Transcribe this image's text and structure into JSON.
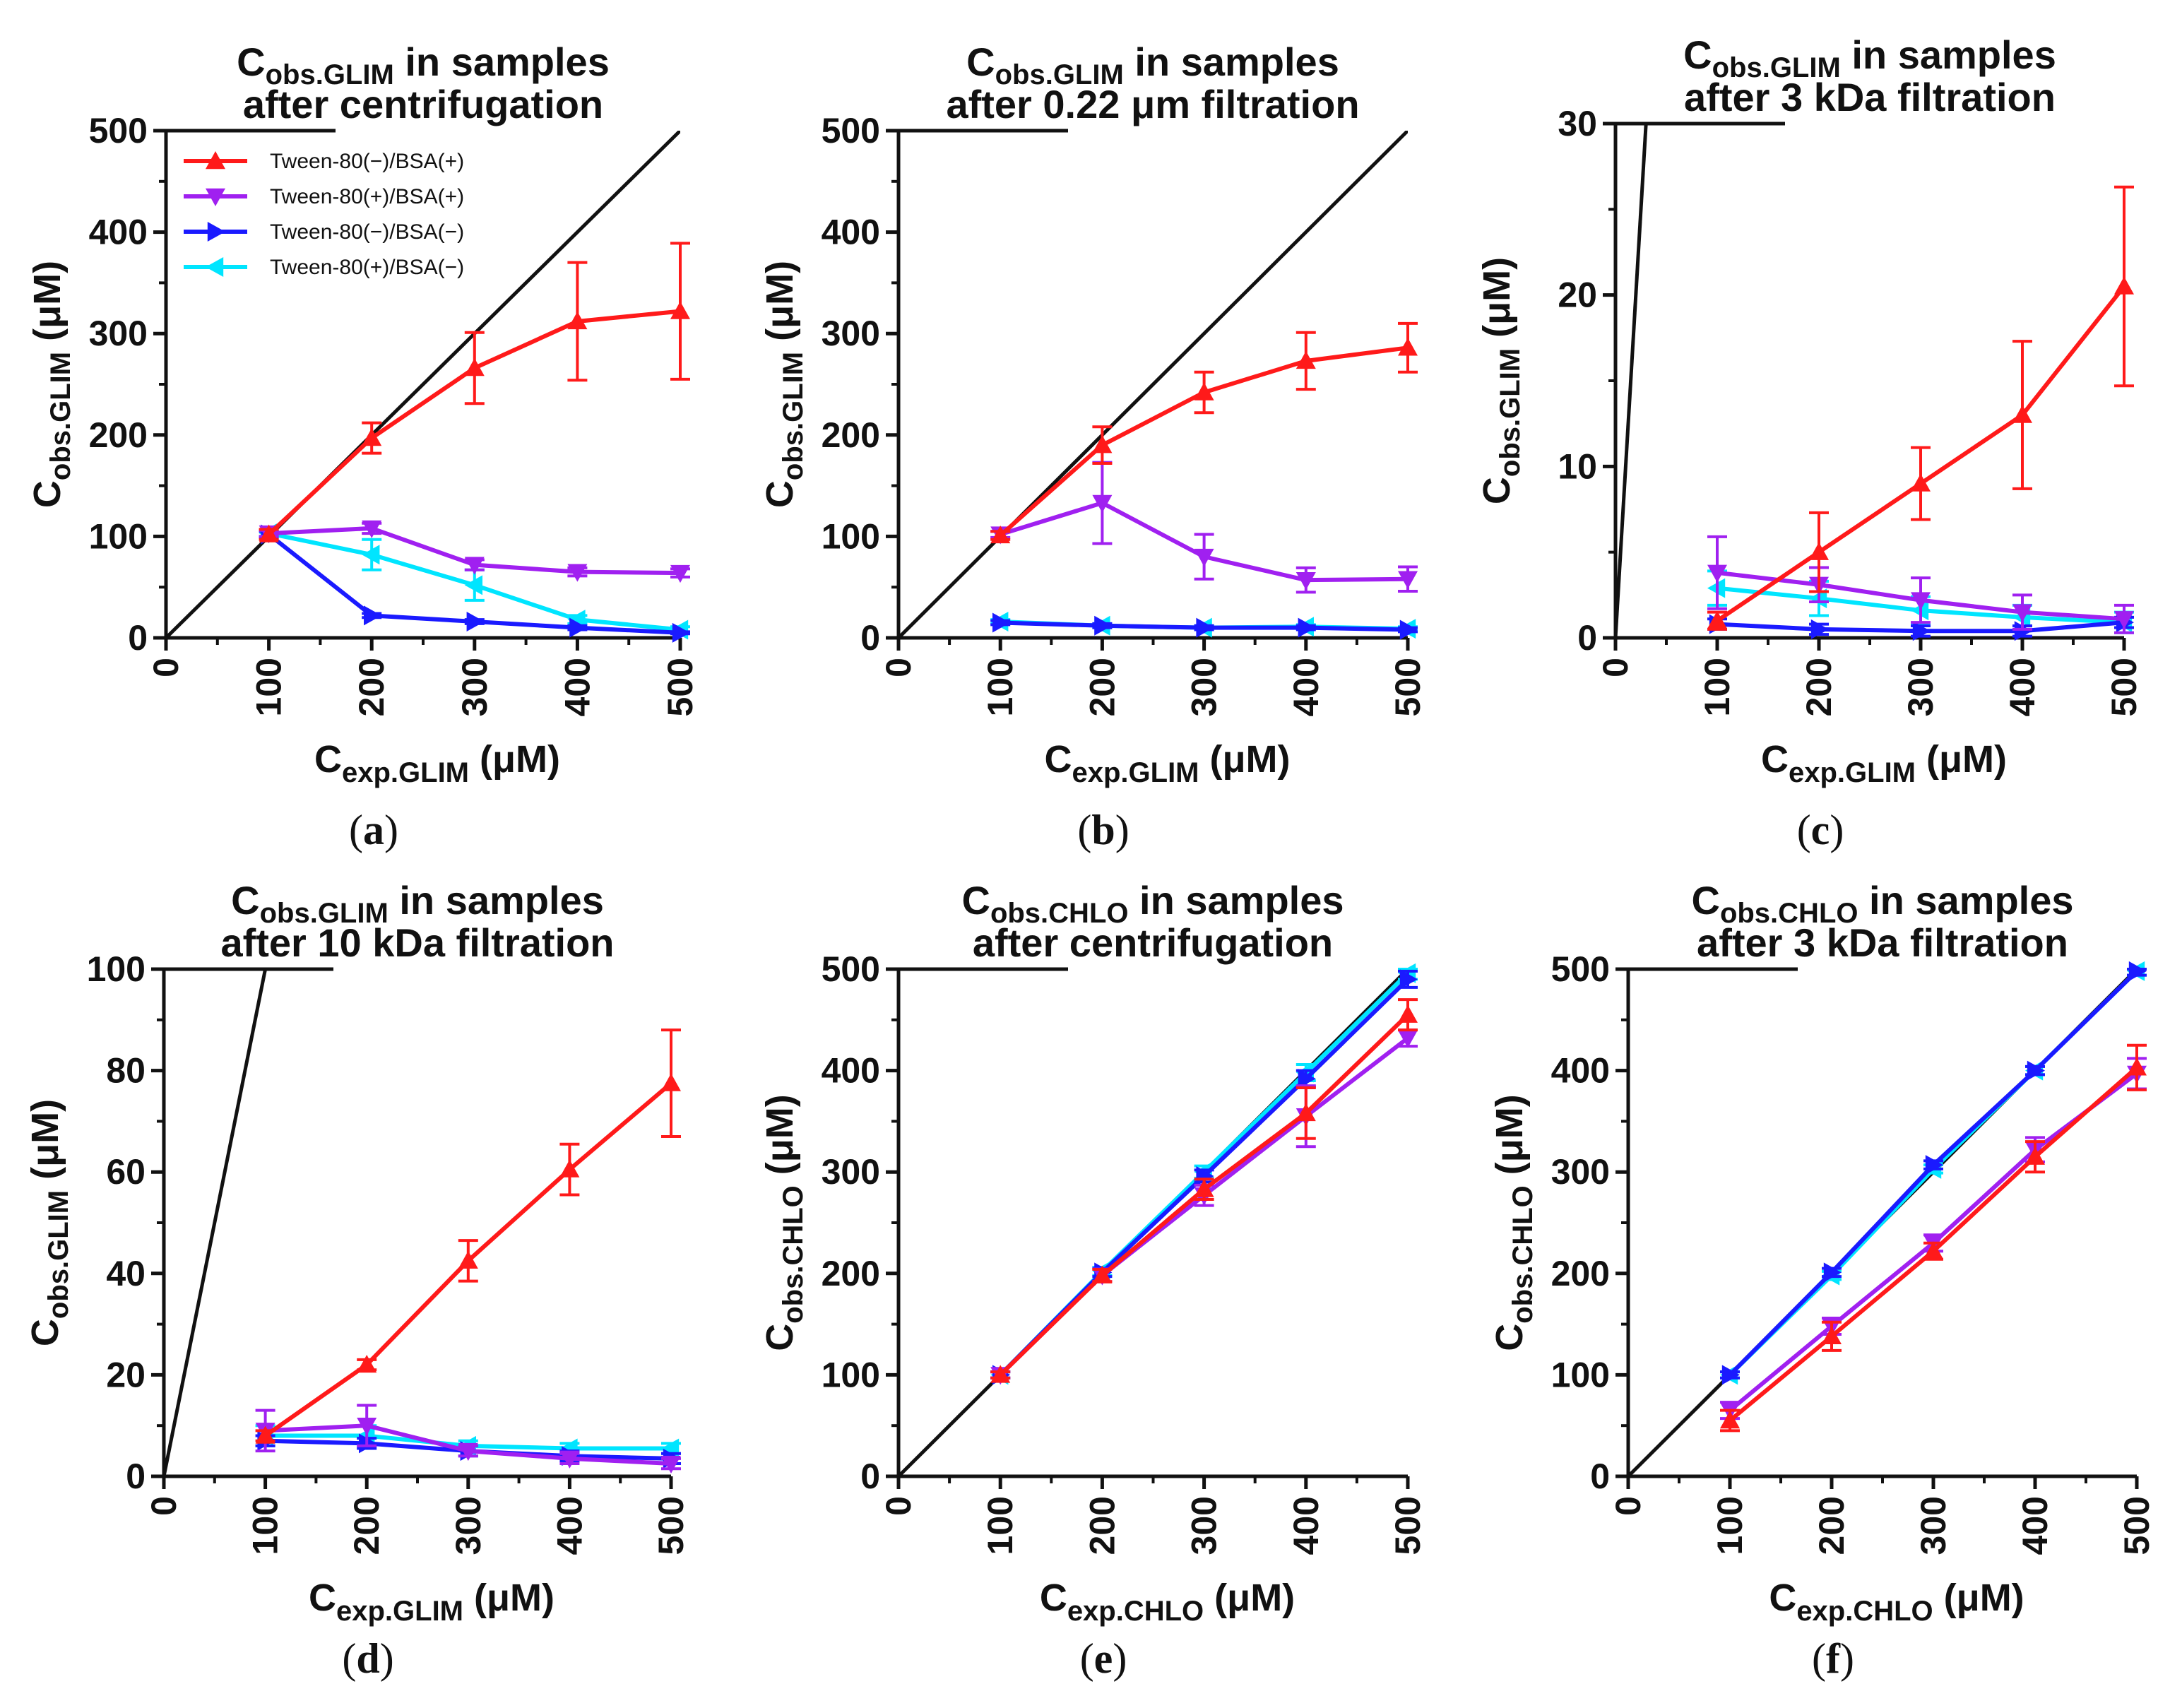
{
  "colors": {
    "t80neg_bsapos": "#ff1a1a",
    "t80pos_bsapos": "#a020f0",
    "t80neg_bsaneg": "#1a1aff",
    "t80pos_bsaneg": "#00e5ff",
    "identity": "#111111"
  },
  "legend": [
    {
      "key": "t80neg_bsapos",
      "label": "Tween-80(−)/BSA(+)",
      "marker": "up"
    },
    {
      "key": "t80pos_bsapos",
      "label": "Tween-80(+)/BSA(+)",
      "marker": "down"
    },
    {
      "key": "t80neg_bsaneg",
      "label": "Tween-80(−)/BSA(−)",
      "marker": "right"
    },
    {
      "key": "t80pos_bsaneg",
      "label": "Tween-80(+)/BSA(−)",
      "marker": "left"
    }
  ],
  "chart_data": [
    {
      "panel": "a",
      "type": "line",
      "panel_label": "(a)",
      "title_sym": "C",
      "title_sub": "obs.GLIM",
      "title_rest": " in samples",
      "title_line2": "after centrifugation",
      "xlabel_sym": "C",
      "xlabel_sub": "exp.GLIM",
      "xlabel_rest": " (μM)",
      "ylabel_sym": "C",
      "ylabel_sub": "obs.GLIM",
      "ylabel_rest": " (μM)",
      "xlim": [
        0,
        500
      ],
      "ylim": [
        0,
        500
      ],
      "xticks": [
        0,
        100,
        200,
        300,
        400,
        500
      ],
      "yticks": [
        0,
        100,
        200,
        300,
        400,
        500
      ],
      "show_legend": true,
      "x": [
        100,
        200,
        300,
        400,
        500
      ],
      "series": [
        {
          "key": "t80neg_bsapos",
          "values": [
            102,
            197,
            266,
            312,
            322
          ],
          "errors": [
            5,
            15,
            35,
            58,
            67
          ]
        },
        {
          "key": "t80pos_bsapos",
          "values": [
            103,
            108,
            72,
            65,
            64
          ],
          "errors": [
            3,
            5,
            5,
            4,
            4
          ]
        },
        {
          "key": "t80neg_bsaneg",
          "values": [
            102,
            22,
            16,
            10,
            5
          ],
          "errors": [
            3,
            2,
            2,
            2,
            1
          ]
        },
        {
          "key": "t80pos_bsaneg",
          "values": [
            103,
            82,
            52,
            18,
            8
          ],
          "errors": [
            3,
            15,
            15,
            4,
            3
          ]
        }
      ]
    },
    {
      "panel": "b",
      "type": "line",
      "panel_label": "(b)",
      "title_sym": "C",
      "title_sub": "obs.GLIM",
      "title_rest": " in samples",
      "title_line2": "after 0.22 μm filtration",
      "xlabel_sym": "C",
      "xlabel_sub": "exp.GLIM",
      "xlabel_rest": " (μM)",
      "ylabel_sym": "C",
      "ylabel_sub": "obs.GLIM",
      "ylabel_rest": " (μM)",
      "xlim": [
        0,
        500
      ],
      "ylim": [
        0,
        500
      ],
      "xticks": [
        0,
        100,
        200,
        300,
        400,
        500
      ],
      "yticks": [
        0,
        100,
        200,
        300,
        400,
        500
      ],
      "show_legend": false,
      "x": [
        100,
        200,
        300,
        400,
        500
      ],
      "series": [
        {
          "key": "t80neg_bsapos",
          "values": [
            101,
            190,
            242,
            273,
            286
          ],
          "errors": [
            4,
            18,
            20,
            28,
            24
          ]
        },
        {
          "key": "t80pos_bsapos",
          "values": [
            102,
            133,
            80,
            57,
            58
          ],
          "errors": [
            3,
            40,
            22,
            12,
            12
          ]
        },
        {
          "key": "t80neg_bsaneg",
          "values": [
            15,
            12,
            10,
            10,
            8
          ],
          "errors": [
            2,
            2,
            2,
            2,
            2
          ]
        },
        {
          "key": "t80pos_bsaneg",
          "values": [
            16,
            12,
            10,
            11,
            9
          ],
          "errors": [
            2,
            2,
            2,
            2,
            2
          ]
        }
      ]
    },
    {
      "panel": "c",
      "type": "line",
      "panel_label": "(c)",
      "title_sym": "C",
      "title_sub": "obs.GLIM",
      "title_rest": " in samples",
      "title_line2": "after 3 kDa filtration",
      "xlabel_sym": "C",
      "xlabel_sub": "exp.GLIM",
      "xlabel_rest": " (μM)",
      "ylabel_sym": "C",
      "ylabel_sub": "obs.GLIM",
      "ylabel_rest": " (μM)",
      "xlim": [
        0,
        500
      ],
      "ylim": [
        0,
        30
      ],
      "xticks": [
        0,
        100,
        200,
        300,
        400,
        500
      ],
      "yticks": [
        0,
        10,
        20,
        30
      ],
      "show_legend": false,
      "x": [
        100,
        200,
        300,
        400,
        500
      ],
      "series": [
        {
          "key": "t80neg_bsapos",
          "values": [
            1,
            5,
            9,
            13,
            20.5
          ],
          "errors": [
            0.5,
            2.3,
            2.1,
            4.3,
            5.8
          ]
        },
        {
          "key": "t80pos_bsapos",
          "values": [
            3.8,
            3.1,
            2.2,
            1.5,
            1.1
          ],
          "errors": [
            2.1,
            1.0,
            1.3,
            1.0,
            0.8
          ]
        },
        {
          "key": "t80neg_bsaneg",
          "values": [
            0.8,
            0.5,
            0.4,
            0.4,
            0.9
          ],
          "errors": [
            0.3,
            0.3,
            0.3,
            0.3,
            0.3
          ]
        },
        {
          "key": "t80pos_bsaneg",
          "values": [
            2.9,
            2.3,
            1.6,
            1.2,
            0.9
          ],
          "errors": [
            1.0,
            1.0,
            0.8,
            0.7,
            0.6
          ]
        }
      ]
    },
    {
      "panel": "d",
      "type": "line",
      "panel_label": "(d)",
      "title_sym": "C",
      "title_sub": "obs.GLIM",
      "title_rest": " in samples",
      "title_line2": "after 10 kDa filtration",
      "xlabel_sym": "C",
      "xlabel_sub": "exp.GLIM",
      "xlabel_rest": " (μM)",
      "ylabel_sym": "C",
      "ylabel_sub": "obs.GLIM",
      "ylabel_rest": " (μM)",
      "xlim": [
        0,
        500
      ],
      "ylim": [
        0,
        100
      ],
      "xticks": [
        0,
        100,
        200,
        300,
        400,
        500
      ],
      "yticks": [
        0,
        20,
        40,
        60,
        80,
        100
      ],
      "show_legend": false,
      "x": [
        100,
        200,
        300,
        400,
        500
      ],
      "series": [
        {
          "key": "t80neg_bsapos",
          "values": [
            8,
            22,
            42.5,
            60.5,
            77.5
          ],
          "errors": [
            1,
            1,
            4,
            5,
            10.5
          ]
        },
        {
          "key": "t80pos_bsapos",
          "values": [
            9,
            10,
            5,
            3.5,
            2.5
          ],
          "errors": [
            4,
            4,
            1,
            1,
            1
          ]
        },
        {
          "key": "t80neg_bsaneg",
          "values": [
            7,
            6.5,
            5,
            4,
            3.5
          ],
          "errors": [
            1,
            1,
            1,
            1,
            1
          ]
        },
        {
          "key": "t80pos_bsaneg",
          "values": [
            8,
            8,
            6,
            5.5,
            5.5
          ],
          "errors": [
            2,
            2,
            1,
            1,
            1
          ]
        }
      ]
    },
    {
      "panel": "e",
      "type": "line",
      "panel_label": "(e)",
      "title_sym": "C",
      "title_sub": "obs.CHLO",
      "title_rest": " in samples",
      "title_line2": "after centrifugation",
      "xlabel_sym": "C",
      "xlabel_sub": "exp.CHLO",
      "xlabel_rest": " (μM)",
      "ylabel_sym": "C",
      "ylabel_sub": "obs.CHLO",
      "ylabel_rest": " (μM)",
      "xlim": [
        0,
        500
      ],
      "ylim": [
        0,
        500
      ],
      "xticks": [
        0,
        100,
        200,
        300,
        400,
        500
      ],
      "yticks": [
        0,
        100,
        200,
        300,
        400,
        500
      ],
      "show_legend": false,
      "x": [
        100,
        200,
        300,
        400,
        500
      ],
      "series": [
        {
          "key": "t80neg_bsapos",
          "values": [
            100,
            198,
            283,
            358,
            455
          ],
          "errors": [
            3,
            6,
            10,
            25,
            15
          ]
        },
        {
          "key": "t80pos_bsapos",
          "values": [
            100,
            198,
            277,
            355,
            432
          ],
          "errors": [
            3,
            6,
            10,
            30,
            8
          ]
        },
        {
          "key": "t80neg_bsaneg",
          "values": [
            100,
            201,
            296,
            392,
            490
          ],
          "errors": [
            3,
            4,
            6,
            8,
            8
          ]
        },
        {
          "key": "t80pos_bsaneg",
          "values": [
            100,
            202,
            300,
            398,
            496
          ],
          "errors": [
            3,
            4,
            6,
            8,
            6
          ]
        }
      ]
    },
    {
      "panel": "f",
      "type": "line",
      "panel_label": "(f)",
      "title_sym": "C",
      "title_sub": "obs.CHLO",
      "title_rest": " in samples",
      "title_line2": "after 3 kDa filtration",
      "xlabel_sym": "C",
      "xlabel_sub": "exp.CHLO",
      "xlabel_rest": " (μM)",
      "ylabel_sym": "C",
      "ylabel_sub": "obs.CHLO",
      "ylabel_rest": " (μM)",
      "xlim": [
        0,
        500
      ],
      "ylim": [
        0,
        500
      ],
      "xticks": [
        0,
        100,
        200,
        300,
        400,
        500
      ],
      "yticks": [
        0,
        100,
        200,
        300,
        400,
        500
      ],
      "show_legend": false,
      "x": [
        100,
        200,
        300,
        400,
        500
      ],
      "series": [
        {
          "key": "t80neg_bsapos",
          "values": [
            55,
            138,
            222,
            315,
            403
          ],
          "errors": [
            10,
            14,
            8,
            15,
            22
          ]
        },
        {
          "key": "t80pos_bsapos",
          "values": [
            65,
            148,
            230,
            322,
            397
          ],
          "errors": [
            8,
            8,
            8,
            12,
            15
          ]
        },
        {
          "key": "t80neg_bsaneg",
          "values": [
            100,
            201,
            307,
            400,
            498
          ],
          "errors": [
            3,
            4,
            4,
            4,
            4
          ]
        },
        {
          "key": "t80pos_bsaneg",
          "values": [
            100,
            198,
            303,
            400,
            498
          ],
          "errors": [
            3,
            4,
            4,
            4,
            4
          ]
        }
      ]
    }
  ]
}
